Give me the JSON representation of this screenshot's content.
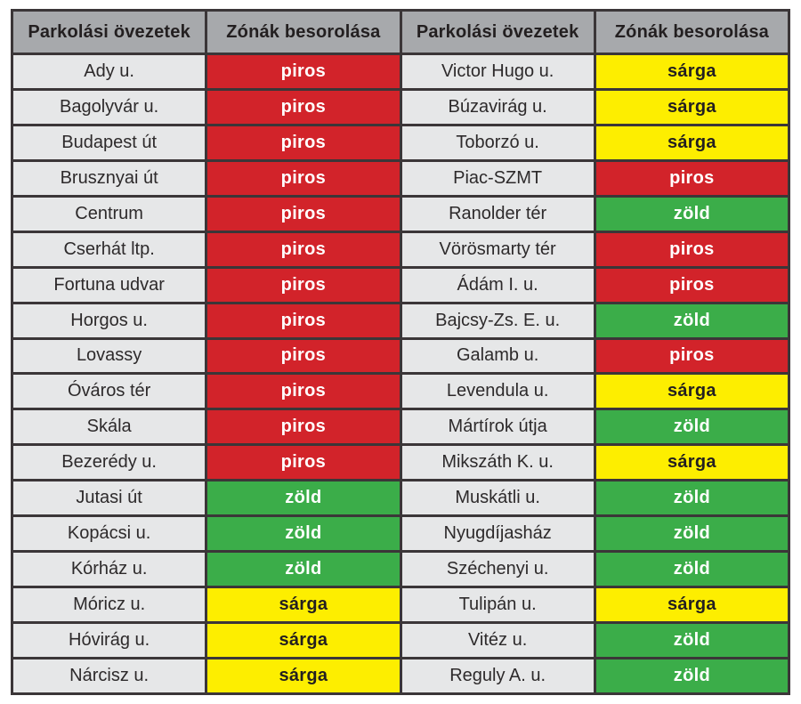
{
  "page": {
    "background": "#ffffff"
  },
  "table": {
    "headers": [
      "Parkolási övezetek",
      "Zónák besorolása",
      "Parkolási övezetek",
      "Zónák besorolása"
    ],
    "style": {
      "header_bg": "#a7a9ac",
      "name_bg": "#e6e7e8",
      "border_color": "#3b3638",
      "header_text": "#231f20",
      "name_text": "#2d2a2b"
    },
    "zone_styles": {
      "piros": {
        "bg": "#d2232a",
        "text": "#ffffff"
      },
      "zöld": {
        "bg": "#3bad49",
        "text": "#ffffff"
      },
      "sárga": {
        "bg": "#fdee00",
        "text": "#231f20"
      }
    },
    "rows": [
      {
        "left": {
          "name": "Ady u.",
          "zone": "piros"
        },
        "right": {
          "name": "Victor Hugo u.",
          "zone": "sárga"
        }
      },
      {
        "left": {
          "name": "Bagolyvár u.",
          "zone": "piros"
        },
        "right": {
          "name": "Búzavirág u.",
          "zone": "sárga"
        }
      },
      {
        "left": {
          "name": "Budapest út",
          "zone": "piros"
        },
        "right": {
          "name": "Toborzó u.",
          "zone": "sárga"
        }
      },
      {
        "left": {
          "name": "Brusznyai út",
          "zone": "piros"
        },
        "right": {
          "name": "Piac-SZMT",
          "zone": "piros"
        }
      },
      {
        "left": {
          "name": "Centrum",
          "zone": "piros"
        },
        "right": {
          "name": "Ranolder tér",
          "zone": "zöld"
        }
      },
      {
        "left": {
          "name": "Cserhát ltp.",
          "zone": "piros"
        },
        "right": {
          "name": "Vörösmarty tér",
          "zone": "piros"
        }
      },
      {
        "left": {
          "name": "Fortuna udvar",
          "zone": "piros"
        },
        "right": {
          "name": "Ádám I. u.",
          "zone": "piros"
        }
      },
      {
        "left": {
          "name": "Horgos u.",
          "zone": "piros"
        },
        "right": {
          "name": "Bajcsy-Zs. E. u.",
          "zone": "zöld"
        }
      },
      {
        "left": {
          "name": "Lovassy",
          "zone": "piros"
        },
        "right": {
          "name": "Galamb u.",
          "zone": "piros"
        }
      },
      {
        "left": {
          "name": "Óváros tér",
          "zone": "piros"
        },
        "right": {
          "name": "Levendula u.",
          "zone": "sárga"
        }
      },
      {
        "left": {
          "name": "Skála",
          "zone": "piros"
        },
        "right": {
          "name": "Mártírok útja",
          "zone": "zöld"
        }
      },
      {
        "left": {
          "name": "Bezerédy u.",
          "zone": "piros"
        },
        "right": {
          "name": "Mikszáth K. u.",
          "zone": "sárga"
        }
      },
      {
        "left": {
          "name": "Jutasi út",
          "zone": "zöld"
        },
        "right": {
          "name": "Muskátli u.",
          "zone": "zöld"
        }
      },
      {
        "left": {
          "name": "Kopácsi u.",
          "zone": "zöld"
        },
        "right": {
          "name": "Nyugdíjasház",
          "zone": "zöld"
        }
      },
      {
        "left": {
          "name": "Kórház u.",
          "zone": "zöld"
        },
        "right": {
          "name": "Széchenyi u.",
          "zone": "zöld"
        }
      },
      {
        "left": {
          "name": "Móricz u.",
          "zone": "sárga"
        },
        "right": {
          "name": "Tulipán u.",
          "zone": "sárga"
        }
      },
      {
        "left": {
          "name": "Hóvirág u.",
          "zone": "sárga"
        },
        "right": {
          "name": "Vitéz u.",
          "zone": "zöld"
        }
      },
      {
        "left": {
          "name": "Nárcisz u.",
          "zone": "sárga"
        },
        "right": {
          "name": "Reguly A. u.",
          "zone": "zöld"
        }
      }
    ]
  }
}
